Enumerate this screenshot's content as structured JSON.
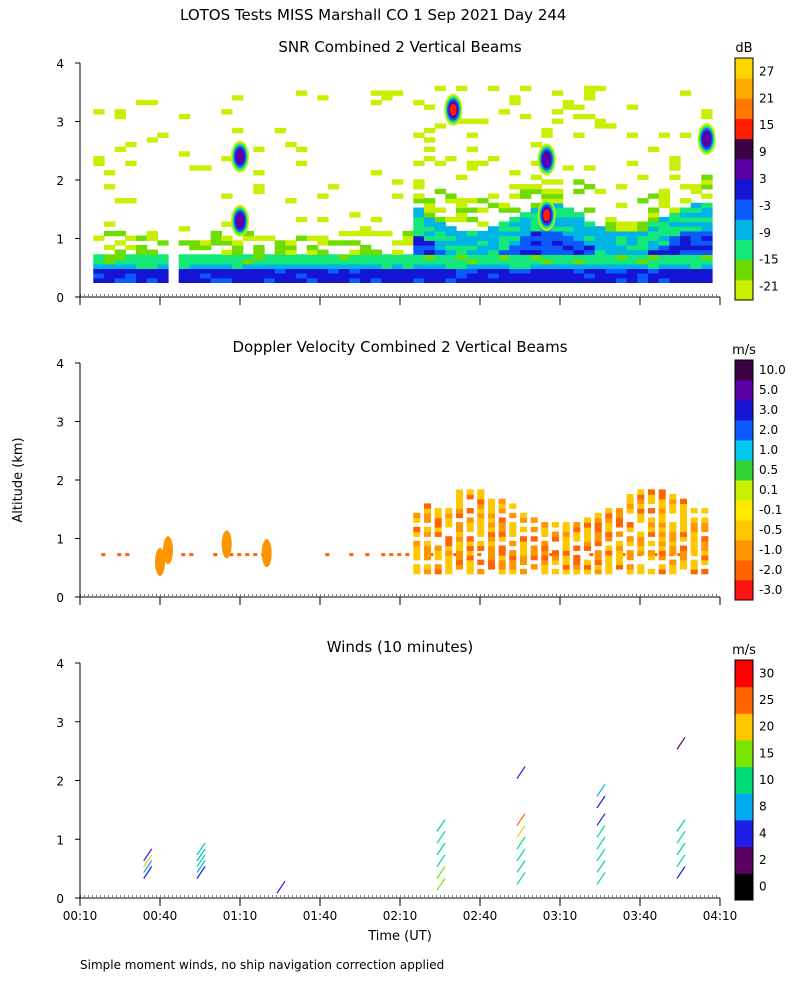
{
  "figure": {
    "title": "LOTOS Tests MISS Marshall CO   1 Sep 2021 Day 244",
    "ylabel": "Altitude (km)",
    "xlabel": "Time (UT)",
    "footnote": "Simple moment winds, no ship navigation correction applied",
    "x_ticks": [
      "00:10",
      "00:40",
      "01:10",
      "01:40",
      "02:10",
      "02:40",
      "03:10",
      "03:40",
      "04:10"
    ],
    "y_ticks": [
      "0",
      "1",
      "2",
      "3",
      "4"
    ]
  },
  "chart_data": [
    {
      "type": "heatmap",
      "id": "snr",
      "title": "SNR Combined 2 Vertical Beams",
      "xlabel": "Time (UT)",
      "ylabel": "Altitude (km)",
      "xlim": [
        "00:10",
        "04:10"
      ],
      "ylim": [
        0,
        4
      ],
      "colorbar": {
        "unit": "dB",
        "ticks": [
          "27",
          "21",
          "15",
          "9",
          "3",
          "-3",
          "-9",
          "-15",
          "-21"
        ],
        "colors": [
          "#c8f000",
          "#6edc00",
          "#14e878",
          "#00b4e6",
          "#0a5aff",
          "#1414d2",
          "#5a00a8",
          "#3c0046",
          "#ff1e00",
          "#ff7800",
          "#ffaa00",
          "#ffd700"
        ]
      },
      "features": [
        {
          "label": "low-level layer",
          "t_start": "00:15",
          "t_end": "04:07",
          "alt_bottom_km": 0.25,
          "alt_top_km": 0.65,
          "snr_db": -3
        },
        {
          "label": "boundary layer growth",
          "t_start": "02:15",
          "t_end": "04:07",
          "alt_bottom_km": 0.3,
          "alt_top_km": 1.3,
          "snr_db": 0
        },
        {
          "label": "cloud echo",
          "t": "02:30",
          "alt_km": 3.2,
          "snr_db": 18
        },
        {
          "label": "cloud echo",
          "t": "03:05",
          "alt_km": 2.35,
          "snr_db": 6
        },
        {
          "label": "cloud echo",
          "t": "03:05",
          "alt_km": 1.4,
          "snr_db": 15
        },
        {
          "label": "cloud echo",
          "t": "04:05",
          "alt_km": 2.7,
          "snr_db": 6
        },
        {
          "label": "cloud echo",
          "t": "01:10",
          "alt_km": 2.4,
          "snr_db": 6
        },
        {
          "label": "cloud echo",
          "t": "01:10",
          "alt_km": 1.3,
          "snr_db": 5
        }
      ]
    },
    {
      "type": "heatmap",
      "id": "doppler",
      "title": "Doppler Velocity Combined 2 Vertical Beams",
      "xlabel": "Time (UT)",
      "ylabel": "Altitude (km)",
      "xlim": [
        "00:10",
        "04:10"
      ],
      "ylim": [
        0,
        4
      ],
      "colorbar": {
        "unit": "m/s",
        "ticks": [
          "10.0",
          "5.0",
          "3.0",
          "2.0",
          "1.0",
          "0.5",
          "0.1",
          "-0.1",
          "-0.5",
          "-1.0",
          "-2.0",
          "-3.0"
        ],
        "colors": [
          "#ff1414",
          "#ff6400",
          "#ff9600",
          "#ffc800",
          "#ffeb00",
          "#c8f000",
          "#32d232",
          "#00c8f0",
          "#0a5aff",
          "#1414d2",
          "#5a00a8",
          "#3c0046"
        ]
      },
      "features": [
        {
          "label": "near-surface returns",
          "t_start": "00:15",
          "t_end": "04:07",
          "alt_km": 0.55,
          "vel_ms": -1.5
        },
        {
          "label": "downward motion region",
          "t_start": "02:15",
          "t_end": "04:07",
          "alt_bottom_km": 0.4,
          "alt_top_km": 1.5,
          "vel_ms": -0.8
        }
      ]
    },
    {
      "type": "scatter",
      "id": "winds",
      "title": "Winds (10 minutes)",
      "xlabel": "Time (UT)",
      "ylabel": "Altitude (km)",
      "xlim": [
        "00:10",
        "04:10"
      ],
      "ylim": [
        0,
        4
      ],
      "colorbar": {
        "unit": "m/s",
        "ticks": [
          "30",
          "25",
          "20",
          "15",
          "10",
          "8",
          "4",
          "2",
          "0"
        ],
        "colors": [
          "#000000",
          "#5a0064",
          "#1e1ee6",
          "#00aaf0",
          "#00dc78",
          "#78e600",
          "#ffc800",
          "#ff6400",
          "#ff0000"
        ]
      },
      "profiles": [
        {
          "t": "00:35",
          "alt_km": [
            0.4,
            0.5,
            0.6,
            0.7
          ],
          "speed_ms": [
            6,
            8,
            20,
            6
          ]
        },
        {
          "t": "00:55",
          "alt_km": [
            0.4,
            0.5,
            0.6,
            0.7,
            0.8
          ],
          "speed_ms": [
            6,
            9,
            10,
            9,
            10
          ]
        },
        {
          "t": "01:25",
          "alt_km": [
            0.15
          ],
          "speed_ms": [
            4
          ]
        },
        {
          "t": "02:25",
          "alt_km": [
            0.2,
            0.4,
            0.6,
            0.8,
            1.0,
            1.2
          ],
          "speed_ms": [
            15,
            18,
            12,
            12,
            10,
            11
          ]
        },
        {
          "t": "02:55",
          "alt_km": [
            0.3,
            0.5,
            0.7,
            0.9,
            1.1,
            1.3,
            2.1
          ],
          "speed_ms": [
            12,
            13,
            12,
            11,
            22,
            28,
            4
          ]
        },
        {
          "t": "03:25",
          "alt_km": [
            0.3,
            0.5,
            0.7,
            0.9,
            1.1,
            1.3,
            1.6,
            1.8
          ],
          "speed_ms": [
            12,
            11,
            12,
            13,
            12,
            6,
            7,
            8
          ]
        },
        {
          "t": "03:55",
          "alt_km": [
            0.4,
            0.6,
            0.8,
            1.0,
            1.2,
            2.6
          ],
          "speed_ms": [
            6,
            14,
            12,
            12,
            11,
            2
          ]
        }
      ]
    }
  ]
}
